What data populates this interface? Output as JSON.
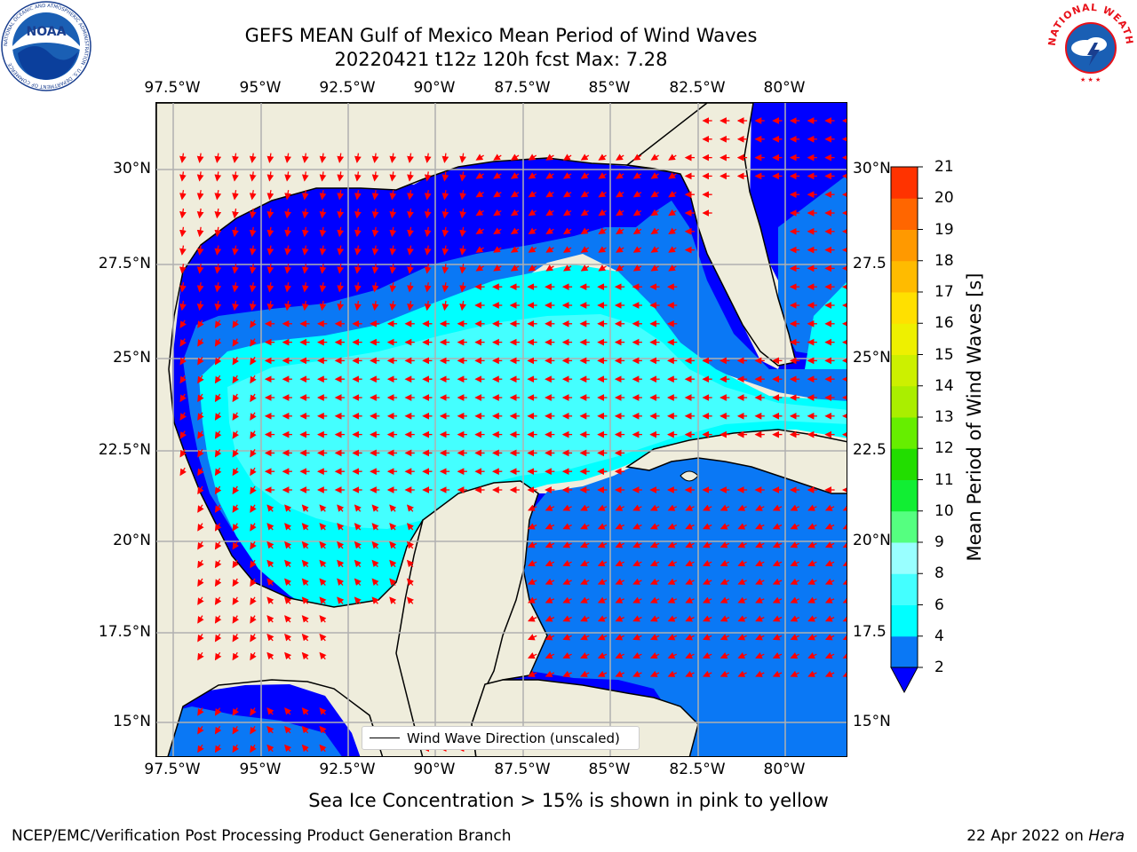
{
  "header": {
    "title_line1": "GEFS MEAN Gulf of Mexico Mean Period of Wind Waves",
    "title_line2": "20220421 t12z 120h fcst   Max: 7.28"
  },
  "logos": {
    "left": "NOAA",
    "left_ring_text": "NATIONAL OCEANIC AND ATMOSPHERIC ADMINISTRATION · U.S. DEPARTMENT OF COMMERCE",
    "right_ring_text": "NATIONAL WEATHER SERVICE"
  },
  "map": {
    "lon_labels": [
      "97.5°W",
      "95°W",
      "92.5°W",
      "90°W",
      "87.5°W",
      "85°W",
      "82.5°W",
      "80°W"
    ],
    "lat_labels": [
      "30°N",
      "27.5°N",
      "25°N",
      "22.5°N",
      "20°N",
      "17.5°N",
      "15°N"
    ],
    "lat_labels_right": [
      "30°N",
      "27.5",
      "25°N",
      "22.5",
      "20°N",
      "17.5",
      "15°N"
    ],
    "legend_text": "Wind Wave Direction (unscaled)",
    "arrow_color": "#ff0000",
    "land_color": "#efeddc"
  },
  "colorbar": {
    "label": "Mean Period of Wind Waves [s]",
    "ticks": [
      "2",
      "4",
      "6",
      "8",
      "9",
      "10",
      "11",
      "12",
      "13",
      "14",
      "15",
      "16",
      "17",
      "18",
      "19",
      "20",
      "21"
    ],
    "colors": [
      "#0a78f5",
      "#00ffff",
      "#44ffff",
      "#99ffff",
      "#55ff80",
      "#11ee33",
      "#22dd00",
      "#66ee00",
      "#aaee00",
      "#ccf000",
      "#eef000",
      "#ffe000",
      "#ffbb00",
      "#ff9900",
      "#ff6600",
      "#ff3300",
      "#ff0000"
    ],
    "extend_color": "#0000ff",
    "period_levels": {
      "2-4": "#0a78f5",
      "4-6": "#00ffff",
      "6-8": "#44ffff",
      "below_2": "#0000ff"
    }
  },
  "note": "Sea Ice Concentration > 15% is shown in pink to yellow",
  "footer": {
    "left": "NCEP/EMC/Verification Post Processing Product Generation Branch",
    "right_prefix": "22 Apr 2022 on ",
    "right_machine": "Hera"
  }
}
